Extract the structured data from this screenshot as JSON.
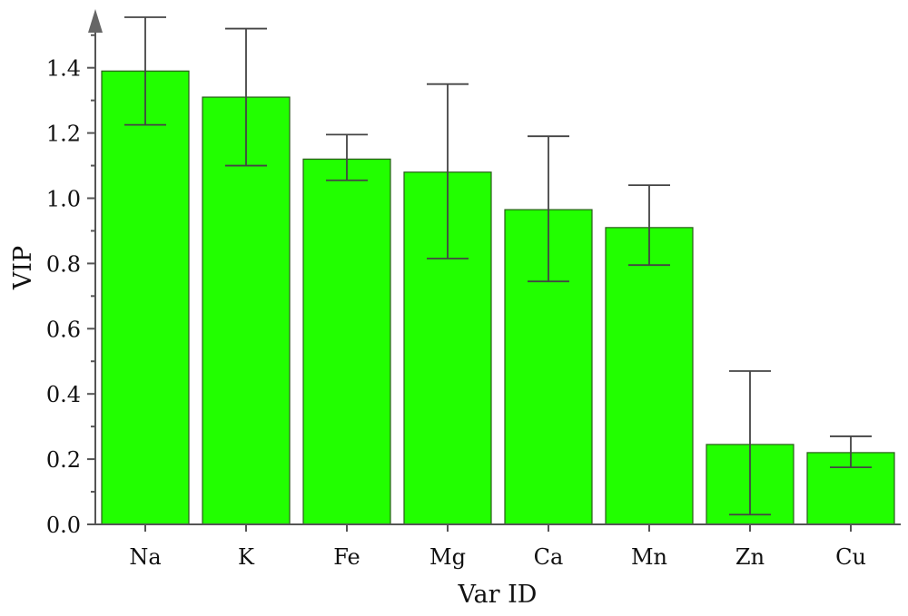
{
  "chart_data": {
    "type": "bar",
    "xlabel": "Var ID",
    "ylabel": "VIP",
    "categories": [
      "Na",
      "K",
      "Fe",
      "Mg",
      "Ca",
      "Mn",
      "Zn",
      "Cu"
    ],
    "values": [
      1.39,
      1.31,
      1.12,
      1.08,
      0.965,
      0.91,
      0.245,
      0.22
    ],
    "error_low": [
      1.225,
      1.1,
      1.055,
      0.815,
      0.745,
      0.795,
      0.03,
      0.175
    ],
    "error_high": [
      1.555,
      1.52,
      1.195,
      1.35,
      1.19,
      1.04,
      0.47,
      0.27
    ],
    "ylim": [
      0,
      1.55
    ],
    "yticks": [
      "0.0",
      "0.2",
      "0.4",
      "0.6",
      "0.8",
      "1.0",
      "1.2",
      "1.4"
    ],
    "grid": false,
    "bar_color": "#22ff00",
    "axis_color": "#555555"
  }
}
